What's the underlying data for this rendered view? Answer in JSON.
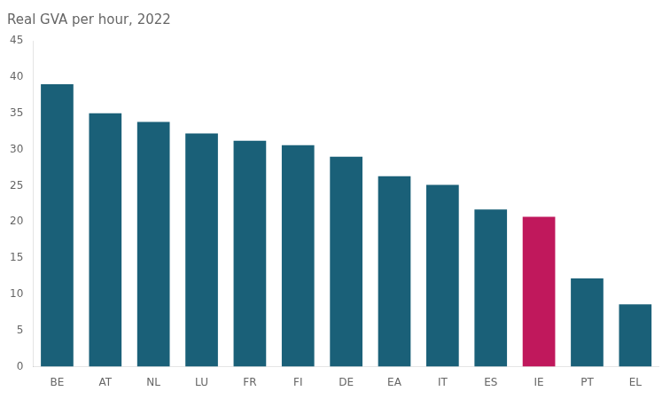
{
  "chart_data": {
    "type": "bar",
    "title": "Real GVA per hour, 2022",
    "categories": [
      "BE",
      "AT",
      "NL",
      "LU",
      "FR",
      "FI",
      "DE",
      "EA",
      "IT",
      "ES",
      "IE",
      "PT",
      "EL"
    ],
    "values": [
      39.0,
      35.0,
      33.8,
      32.2,
      31.2,
      30.6,
      29.0,
      26.3,
      25.1,
      21.7,
      20.7,
      12.2,
      8.6
    ],
    "colors": [
      "#1a6078",
      "#1a6078",
      "#1a6078",
      "#1a6078",
      "#1a6078",
      "#1a6078",
      "#1a6078",
      "#1a6078",
      "#1a6078",
      "#1a6078",
      "#c0185c",
      "#1a6078",
      "#1a6078"
    ],
    "ylim": [
      0,
      45
    ],
    "yticks": [
      0,
      5,
      10,
      15,
      20,
      25,
      30,
      35,
      40,
      45
    ],
    "grid": false
  }
}
